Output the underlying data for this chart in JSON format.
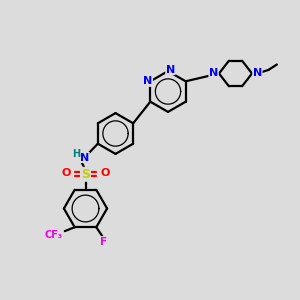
{
  "bg_color": "#dcdcdc",
  "bond_color": "#000000",
  "bond_width": 1.6,
  "atom_colors": {
    "N_blue": "#0000ee",
    "H": "#008080",
    "S": "#cccc00",
    "O": "#ff0000",
    "F": "#ee00ee",
    "C": "#000000"
  },
  "xlim": [
    0,
    10
  ],
  "ylim": [
    0,
    10
  ]
}
